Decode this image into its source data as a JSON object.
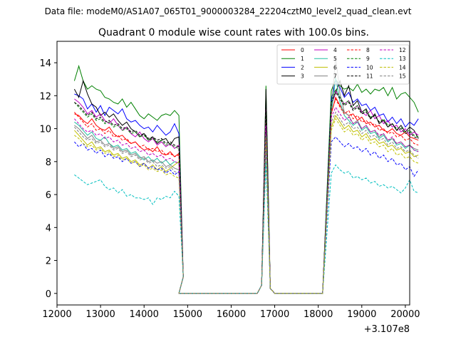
{
  "chart_data": {
    "type": "line",
    "suptitle": "Data file: modeM0/AS1A07_065T01_9000003284_22204cztM0_level2_quad_clean.evt",
    "title": "Quadrant 0 module wise count rates with 100.0s bins.",
    "xlabel": "",
    "ylabel": "",
    "x_offset_label": "+3.107e8",
    "xlim": [
      12000,
      20100
    ],
    "ylim": [
      -0.7,
      15.3
    ],
    "x_ticks": [
      12000,
      13000,
      14000,
      15000,
      16000,
      17000,
      18000,
      19000,
      20000
    ],
    "x_tick_labels": [
      "12000",
      "13000",
      "14000",
      "15000",
      "16000",
      "17000",
      "18000",
      "19000",
      "20000"
    ],
    "y_ticks": [
      0,
      2,
      4,
      6,
      8,
      10,
      12,
      14
    ],
    "y_tick_labels": [
      "0",
      "2",
      "4",
      "6",
      "8",
      "10",
      "12",
      "14"
    ],
    "legend_location": "top-right",
    "legend_columns": 4,
    "series": [
      {
        "name": "0",
        "color": "#ff0000",
        "style": "solid",
        "seg1": [
          10.9,
          10.8,
          10.5,
          10.3,
          10.6,
          10.2,
          10.0,
          9.9,
          10.1,
          9.7,
          9.5,
          9.6,
          9.3,
          9.1,
          9.2,
          8.9,
          8.7,
          8.8,
          8.6,
          8.9,
          8.5,
          8.4,
          8.6,
          8.3,
          8.5
        ],
        "spike": 10.6,
        "seg2": [
          10.9,
          11.9,
          11.4,
          11.0,
          10.8,
          10.9,
          10.5,
          10.7,
          10.3,
          10.4,
          10.1,
          10.2,
          9.9,
          9.8,
          10.0,
          9.7,
          9.6,
          9.8,
          9.5,
          9.4,
          9.3
        ]
      },
      {
        "name": "1",
        "color": "#008000",
        "style": "solid",
        "seg1": [
          12.9,
          13.8,
          12.9,
          12.4,
          12.6,
          12.4,
          12.3,
          11.9,
          11.8,
          11.6,
          11.5,
          11.8,
          11.3,
          11.6,
          11.2,
          10.8,
          10.6,
          10.9,
          10.7,
          10.5,
          10.8,
          10.9,
          10.8,
          11.1,
          10.8
        ],
        "spike": 12.6,
        "seg2": [
          12.3,
          13.0,
          12.6,
          12.4,
          12.5,
          12.3,
          12.7,
          12.2,
          12.4,
          12.1,
          12.4,
          12.3,
          12.5,
          12.0,
          12.5,
          11.8,
          12.1,
          12.2,
          11.9,
          11.6,
          11.0
        ]
      },
      {
        "name": "2",
        "color": "#0000ff",
        "style": "solid",
        "seg1": [
          12.1,
          12.0,
          11.8,
          11.2,
          11.5,
          11.0,
          11.4,
          10.8,
          11.3,
          11.1,
          10.9,
          11.2,
          10.6,
          10.4,
          10.5,
          10.2,
          10.0,
          10.1,
          9.8,
          10.2,
          9.9,
          9.6,
          9.8,
          10.3,
          9.7
        ],
        "spike": 11.5,
        "seg2": [
          11.8,
          12.9,
          12.5,
          11.9,
          12.2,
          11.6,
          11.8,
          11.4,
          11.5,
          11.1,
          11.3,
          10.8,
          10.9,
          10.4,
          10.7,
          10.3,
          10.6,
          10.1,
          10.4,
          10.2,
          10.6
        ]
      },
      {
        "name": "3",
        "color": "#000000",
        "style": "solid",
        "seg1": [
          12.4,
          11.9,
          12.9,
          12.1,
          11.5,
          11.3,
          10.8,
          11.0,
          10.7,
          10.9,
          10.5,
          10.2,
          10.4,
          10.0,
          9.8,
          9.5,
          9.7,
          9.3,
          9.5,
          9.1,
          9.3,
          9.4,
          9.0,
          9.4,
          9.5
        ],
        "spike": 12.4,
        "seg2": [
          11.4,
          12.2,
          12.9,
          12.0,
          12.6,
          11.4,
          11.7,
          11.0,
          11.2,
          10.6,
          10.9,
          10.3,
          10.5,
          10.1,
          10.3,
          9.9,
          10.2,
          9.8,
          10.1,
          9.9,
          9.4
        ]
      },
      {
        "name": "4",
        "color": "#bf00bf",
        "style": "solid",
        "seg1": [
          11.8,
          11.6,
          11.3,
          10.9,
          11.1,
          10.7,
          10.9,
          10.5,
          10.3,
          10.6,
          10.2,
          9.9,
          10.1,
          9.7,
          9.5,
          9.8,
          9.4,
          9.2,
          9.4,
          9.0,
          9.2,
          8.9,
          9.1,
          8.8,
          9.0
        ],
        "spike": 11.2,
        "seg2": [
          11.3,
          12.3,
          11.9,
          11.5,
          11.7,
          11.2,
          11.4,
          11.0,
          10.8,
          11.1,
          10.6,
          10.8,
          10.3,
          10.5,
          10.1,
          10.2,
          9.8,
          10.0,
          9.6,
          9.8,
          9.6
        ]
      },
      {
        "name": "5",
        "color": "#20c0a0",
        "style": "solid",
        "seg1": [
          10.4,
          10.2,
          9.9,
          9.6,
          9.8,
          9.4,
          9.3,
          9.5,
          9.1,
          8.9,
          9.0,
          8.7,
          8.8,
          8.5,
          8.6,
          8.3,
          8.1,
          8.3,
          8.0,
          8.2,
          7.9,
          8.1,
          7.8,
          8.0,
          7.9
        ],
        "spike": 9.9,
        "seg2": [
          10.9,
          13.1,
          11.6,
          10.8,
          10.5,
          10.2,
          10.4,
          9.9,
          10.1,
          9.7,
          9.8,
          9.4,
          9.6,
          9.2,
          9.4,
          9.0,
          9.1,
          8.8,
          9.0,
          8.7,
          8.6
        ]
      },
      {
        "name": "6",
        "color": "#bfbf00",
        "style": "solid",
        "seg1": [
          9.9,
          9.6,
          9.3,
          9.0,
          9.2,
          8.8,
          8.9,
          8.6,
          8.7,
          8.4,
          8.5,
          8.2,
          8.3,
          8.0,
          8.1,
          7.8,
          7.9,
          7.6,
          7.8,
          7.5,
          7.7,
          7.4,
          7.6,
          7.8,
          8.0
        ],
        "spike": 9.5,
        "seg2": [
          10.1,
          10.8,
          10.4,
          10.0,
          10.2,
          9.8,
          9.9,
          9.5,
          9.7,
          9.3,
          9.4,
          9.1,
          9.2,
          8.9,
          9.0,
          8.7,
          8.8,
          8.5,
          8.6,
          8.3,
          8.4
        ]
      },
      {
        "name": "7",
        "color": "#808080",
        "style": "solid",
        "seg1": [
          10.2,
          10.0,
          9.7,
          9.4,
          9.6,
          9.2,
          9.3,
          9.0,
          9.1,
          8.8,
          8.9,
          8.6,
          8.7,
          8.4,
          8.5,
          8.2,
          8.3,
          8.0,
          8.1,
          7.9,
          8.0,
          7.7,
          7.8,
          7.6,
          7.5
        ],
        "spike": 9.7,
        "seg2": [
          11.1,
          14.4,
          12.1,
          11.0,
          10.8,
          10.3,
          10.5,
          10.0,
          10.2,
          9.8,
          9.9,
          9.5,
          9.7,
          9.3,
          9.4,
          9.1,
          9.2,
          8.9,
          9.0,
          8.8,
          8.7
        ]
      },
      {
        "name": "8",
        "color": "#ff0000",
        "style": "dashed",
        "seg1": [
          11.0,
          10.7,
          10.4,
          10.1,
          10.3,
          9.9,
          10.0,
          9.7,
          9.9,
          9.5,
          9.6,
          9.3,
          9.4,
          9.1,
          9.2,
          8.9,
          9.0,
          8.7,
          8.8,
          8.6,
          8.7,
          8.4,
          8.5,
          8.3,
          8.4
        ],
        "spike": 10.4,
        "seg2": [
          11.0,
          11.8,
          11.3,
          10.9,
          11.1,
          10.6,
          10.8,
          10.4,
          10.5,
          10.2,
          10.3,
          9.9,
          10.0,
          9.7,
          9.8,
          9.5,
          9.6,
          9.3,
          9.4,
          9.1,
          9.0
        ]
      },
      {
        "name": "9",
        "color": "#008000",
        "style": "dashed",
        "seg1": [
          11.6,
          11.3,
          11.0,
          10.7,
          10.9,
          10.5,
          10.6,
          10.3,
          10.4,
          10.1,
          10.2,
          9.9,
          10.0,
          9.7,
          9.8,
          9.5,
          9.6,
          9.3,
          9.4,
          9.2,
          9.3,
          9.0,
          9.1,
          8.9,
          8.8
        ],
        "spike": 11.0,
        "seg2": [
          11.7,
          12.4,
          11.9,
          11.5,
          11.7,
          11.2,
          11.4,
          10.9,
          11.1,
          10.7,
          10.8,
          10.4,
          10.6,
          10.2,
          10.3,
          10.0,
          10.1,
          9.8,
          9.9,
          9.6,
          9.5
        ]
      },
      {
        "name": "10",
        "color": "#0000ff",
        "style": "dashed",
        "seg1": [
          9.2,
          8.9,
          9.1,
          8.7,
          8.8,
          8.5,
          8.7,
          8.3,
          8.5,
          8.2,
          8.3,
          8.0,
          8.2,
          7.9,
          8.0,
          7.7,
          7.9,
          7.6,
          7.7,
          7.5,
          7.6,
          7.3,
          7.5,
          7.2,
          7.4
        ],
        "spike": 8.9,
        "seg2": [
          9.2,
          9.5,
          9.2,
          8.9,
          9.1,
          8.8,
          8.9,
          8.6,
          8.8,
          8.4,
          8.6,
          8.2,
          8.4,
          8.0,
          8.2,
          7.8,
          7.9,
          7.5,
          7.7,
          7.1,
          7.5
        ]
      },
      {
        "name": "11",
        "color": "#000000",
        "style": "dashed",
        "seg1": [
          11.6,
          11.4,
          11.1,
          10.8,
          11.0,
          10.6,
          10.7,
          10.4,
          10.5,
          10.2,
          10.3,
          10.0,
          10.1,
          9.8,
          9.9,
          9.6,
          9.7,
          9.4,
          9.5,
          9.3,
          9.4,
          9.1,
          9.2,
          9.0,
          8.9
        ],
        "spike": 11.3,
        "seg2": [
          11.6,
          12.2,
          11.8,
          11.4,
          11.6,
          11.1,
          11.3,
          10.9,
          11.0,
          10.6,
          10.8,
          10.4,
          10.5,
          10.1,
          10.3,
          9.9,
          10.0,
          9.7,
          9.8,
          9.5,
          9.4
        ]
      },
      {
        "name": "12",
        "color": "#bf00bf",
        "style": "dashed",
        "seg1": [
          10.6,
          10.3,
          10.0,
          9.8,
          9.9,
          9.6,
          9.7,
          9.4,
          9.5,
          9.2,
          9.3,
          9.0,
          9.1,
          8.8,
          8.9,
          8.6,
          8.7,
          8.4,
          8.5,
          8.3,
          8.4,
          8.1,
          8.2,
          8.0,
          7.9
        ],
        "spike": 10.2,
        "seg2": [
          10.7,
          11.3,
          10.9,
          10.5,
          10.7,
          10.3,
          10.4,
          10.0,
          10.2,
          9.8,
          9.9,
          9.6,
          9.7,
          9.3,
          9.5,
          9.1,
          9.2,
          8.9,
          9.0,
          8.7,
          8.6
        ]
      },
      {
        "name": "13",
        "color": "#00bfbf",
        "style": "dashed",
        "seg1": [
          7.2,
          7.0,
          6.8,
          6.6,
          6.7,
          6.8,
          6.9,
          6.5,
          6.3,
          6.4,
          6.1,
          6.3,
          5.9,
          6.0,
          5.8,
          5.8,
          5.7,
          5.8,
          5.4,
          5.8,
          5.7,
          5.9,
          5.8,
          6.2,
          5.9
        ],
        "spike": 8.0,
        "seg2": [
          7.3,
          7.8,
          7.5,
          7.3,
          7.4,
          7.0,
          7.1,
          6.9,
          7.0,
          6.7,
          6.8,
          6.5,
          6.6,
          6.4,
          6.5,
          6.3,
          6.1,
          6.4,
          6.9,
          6.2,
          6.1
        ]
      },
      {
        "name": "14",
        "color": "#bfbf00",
        "style": "dashed",
        "seg1": [
          9.6,
          9.4,
          9.1,
          8.9,
          9.0,
          8.7,
          8.8,
          8.5,
          8.6,
          8.3,
          8.4,
          8.1,
          8.2,
          7.9,
          8.0,
          7.7,
          7.8,
          7.5,
          7.6,
          7.4,
          7.5,
          7.2,
          7.3,
          7.1,
          7.0
        ],
        "spike": 9.4,
        "seg2": [
          9.9,
          10.6,
          10.2,
          9.8,
          10.0,
          9.6,
          9.7,
          9.3,
          9.5,
          9.1,
          9.2,
          8.9,
          9.0,
          8.6,
          8.8,
          8.4,
          8.5,
          8.2,
          8.3,
          8.0,
          7.9
        ]
      },
      {
        "name": "15",
        "color": "#808080",
        "style": "dashed",
        "seg1": [
          10.1,
          9.8,
          9.5,
          9.3,
          9.4,
          9.1,
          9.2,
          8.9,
          9.0,
          8.7,
          8.8,
          8.5,
          8.6,
          8.3,
          8.4,
          8.1,
          8.2,
          7.9,
          8.0,
          7.7,
          7.8,
          7.6,
          7.7,
          7.4,
          7.3
        ],
        "spike": 9.6,
        "seg2": [
          10.4,
          11.0,
          10.6,
          10.2,
          10.4,
          10.0,
          10.1,
          9.7,
          9.9,
          9.5,
          9.6,
          9.3,
          9.4,
          9.0,
          9.2,
          8.8,
          8.9,
          8.6,
          8.7,
          8.4,
          8.2
        ]
      }
    ]
  }
}
